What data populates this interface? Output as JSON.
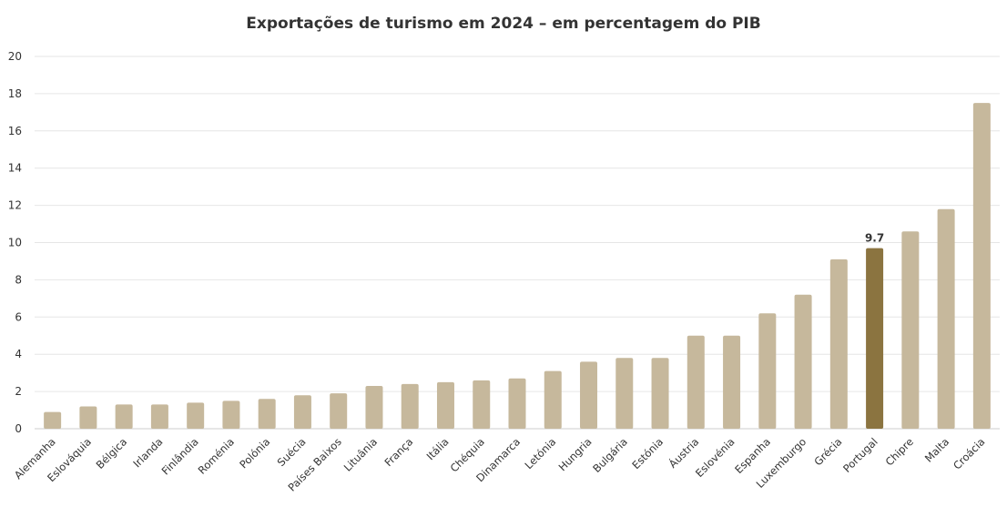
{
  "chart_data": {
    "type": "bar",
    "title": "Exportações de turismo em 2024 – em percentagem do PIB",
    "xlabel": "",
    "ylabel": "",
    "ylim": [
      0,
      20
    ],
    "yticks": [
      0,
      2,
      4,
      6,
      8,
      10,
      12,
      14,
      16,
      18,
      20
    ],
    "grid": true,
    "categories": [
      "Alemanha",
      "Eslováquia",
      "Bélgica",
      "Irlanda",
      "Finlândia",
      "Roménia",
      "Polónia",
      "Suécia",
      "Países Baixos",
      "Lituânia",
      "França",
      "Itália",
      "Chéquia",
      "Dinamarca",
      "Letónia",
      "Hungria",
      "Bulgária",
      "Estónia",
      "Áustria",
      "Eslovénia",
      "Espanha",
      "Luxemburgo",
      "Grécia",
      "Portugal",
      "Chipre",
      "Malta",
      "Croácia"
    ],
    "values": [
      0.9,
      1.2,
      1.3,
      1.3,
      1.4,
      1.5,
      1.6,
      1.8,
      1.9,
      2.3,
      2.4,
      2.5,
      2.6,
      2.7,
      3.1,
      3.6,
      3.8,
      3.8,
      5.0,
      5.0,
      6.2,
      7.2,
      9.1,
      9.7,
      10.6,
      11.8,
      17.5
    ],
    "highlight": {
      "category": "Portugal",
      "label": "9.7"
    },
    "colors": {
      "bar": "#c6b89c",
      "highlight": "#8b7440",
      "grid": "#e6e6e6",
      "text": "#333333"
    }
  }
}
